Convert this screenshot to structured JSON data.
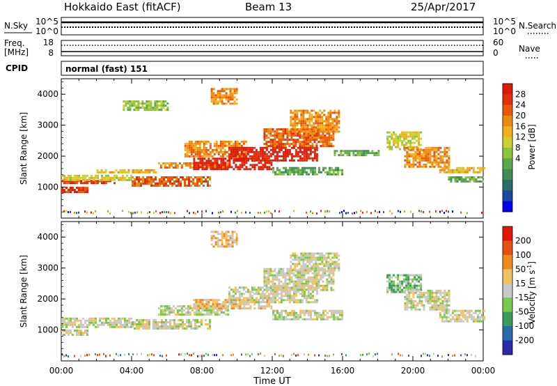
{
  "header": {
    "station": "Hokkaido East (fitACF)",
    "beam": "Beam 13",
    "date": "25/Apr/2017"
  },
  "noise_panel": {
    "left_label": "N.Sky",
    "left_ticks": [
      "10^5",
      "10^0"
    ],
    "right_ticks": [
      "10^5",
      "10^0"
    ],
    "right_label": "N.Search"
  },
  "freq_panel": {
    "left_label_line1": "Freq.",
    "left_label_line2": "[MHz]",
    "left_ticks": [
      "18",
      "8"
    ],
    "right_ticks": [
      "60",
      "0"
    ],
    "right_label": "Nave"
  },
  "cpid_panel": {
    "label": "CPID",
    "text": "normal (fast) 151"
  },
  "chart_data": [
    {
      "type": "heatmap",
      "name": "power",
      "xlabel": "Time UT",
      "ylabel": "Slant Range [km]",
      "ylim": [
        0,
        4500
      ],
      "y_ticks": [
        "1000",
        "2000",
        "3000",
        "4000"
      ],
      "x_ticks": [
        "00:00",
        "04:00",
        "08:00",
        "12:00",
        "16:00",
        "20:00",
        "00:00"
      ],
      "colorbar": {
        "label": "Power [dB]",
        "ticks": [
          "28",
          "24",
          "20",
          "16",
          "12",
          "8",
          "4"
        ],
        "colors": [
          "#0000ee",
          "#1a4aa0",
          "#2a6e6a",
          "#3c8e54",
          "#5aa84a",
          "#8cc43c",
          "#cdd12f",
          "#f2b01e",
          "#ef8a10",
          "#e85a0a",
          "#e0300a",
          "#dd1a06"
        ]
      },
      "regions": [
        {
          "t0": 0.0,
          "t1": 1.5,
          "r0": 870,
          "r1": 1010,
          "level": 10
        },
        {
          "t0": 0.0,
          "t1": 3.0,
          "r0": 1100,
          "r1": 1230,
          "level": 10
        },
        {
          "t0": 0.0,
          "t1": 4.0,
          "r0": 1230,
          "r1": 1400,
          "level": 6
        },
        {
          "t0": 2.0,
          "t1": 5.5,
          "r0": 1480,
          "r1": 1580,
          "level": 7
        },
        {
          "t0": 4.0,
          "t1": 8.5,
          "r0": 1050,
          "r1": 1350,
          "level": 9
        },
        {
          "t0": 5.5,
          "t1": 9.5,
          "r0": 1600,
          "r1": 1800,
          "level": 8
        },
        {
          "t0": 7.5,
          "t1": 12.0,
          "r0": 1550,
          "r1": 1950,
          "level": 11
        },
        {
          "t0": 7.0,
          "t1": 10.5,
          "r0": 2000,
          "r1": 2500,
          "level": 8
        },
        {
          "t0": 9.5,
          "t1": 14.5,
          "r0": 1850,
          "r1": 2300,
          "level": 11
        },
        {
          "t0": 11.5,
          "t1": 15.5,
          "r0": 2300,
          "r1": 2900,
          "level": 9
        },
        {
          "t0": 13.0,
          "t1": 15.8,
          "r0": 2800,
          "r1": 3500,
          "level": 8
        },
        {
          "t0": 8.5,
          "t1": 10.0,
          "r0": 3700,
          "r1": 4200,
          "level": 8
        },
        {
          "t0": 3.5,
          "t1": 6.0,
          "r0": 3500,
          "r1": 3800,
          "level": 5
        },
        {
          "t0": 12.0,
          "t1": 16.0,
          "r0": 1400,
          "r1": 1650,
          "level": 4
        },
        {
          "t0": 15.5,
          "t1": 18.0,
          "r0": 2000,
          "r1": 2200,
          "level": 4
        },
        {
          "t0": 18.5,
          "t1": 20.5,
          "r0": 2200,
          "r1": 2800,
          "level": 6
        },
        {
          "t0": 19.5,
          "t1": 22.0,
          "r0": 1650,
          "r1": 2300,
          "level": 8
        },
        {
          "t0": 21.5,
          "t1": 24.0,
          "r0": 1450,
          "r1": 1650,
          "level": 7
        },
        {
          "t0": 22.0,
          "t1": 24.0,
          "r0": 1150,
          "r1": 1350,
          "level": 4
        }
      ]
    },
    {
      "type": "heatmap",
      "name": "velocity",
      "xlabel": "Time UT",
      "ylabel": "Slant Range [km]",
      "ylim": [
        0,
        4500
      ],
      "y_ticks": [
        "1000",
        "2000",
        "3000",
        "4000"
      ],
      "x_ticks": [
        "00:00",
        "04:00",
        "08:00",
        "12:00",
        "16:00",
        "20:00",
        "00:00"
      ],
      "colorbar": {
        "label": "Velocity [m s-1]",
        "label_main": "Velocity [m s",
        "label_sup": "-1",
        "label_end": "]",
        "ticks": [
          "200",
          "100",
          "50",
          "15",
          "-15",
          "-50",
          "-100",
          "-200"
        ],
        "colors": [
          "#2a2aa8",
          "#2a6aa8",
          "#3a9a5a",
          "#7cc84a",
          "#c8c8c8",
          "#f2c060",
          "#f08a20",
          "#e85010",
          "#e01808"
        ]
      },
      "regions": [
        {
          "t0": 0.0,
          "t1": 1.5,
          "r0": 870,
          "r1": 1010,
          "level": 4
        },
        {
          "t0": 0.0,
          "t1": 4.0,
          "r0": 1100,
          "r1": 1400,
          "level": 4
        },
        {
          "t0": 4.0,
          "t1": 8.5,
          "r0": 1050,
          "r1": 1350,
          "level": 4
        },
        {
          "t0": 5.5,
          "t1": 9.5,
          "r0": 1500,
          "r1": 1800,
          "level": 4
        },
        {
          "t0": 7.5,
          "t1": 12.0,
          "r0": 1700,
          "r1": 2000,
          "level": 5
        },
        {
          "t0": 9.5,
          "t1": 14.5,
          "r0": 1900,
          "r1": 2400,
          "level": 4
        },
        {
          "t0": 11.5,
          "t1": 15.5,
          "r0": 2300,
          "r1": 3000,
          "level": 4
        },
        {
          "t0": 13.0,
          "t1": 15.8,
          "r0": 2900,
          "r1": 3500,
          "level": 4
        },
        {
          "t0": 8.5,
          "t1": 10.0,
          "r0": 3700,
          "r1": 4200,
          "level": 5
        },
        {
          "t0": 12.0,
          "t1": 16.0,
          "r0": 1350,
          "r1": 1650,
          "level": 4
        },
        {
          "t0": 18.5,
          "t1": 20.5,
          "r0": 2200,
          "r1": 2800,
          "level": 3
        },
        {
          "t0": 19.5,
          "t1": 22.0,
          "r0": 1650,
          "r1": 2300,
          "level": 4
        },
        {
          "t0": 21.5,
          "t1": 24.0,
          "r0": 1300,
          "r1": 1650,
          "level": 4
        }
      ]
    }
  ]
}
